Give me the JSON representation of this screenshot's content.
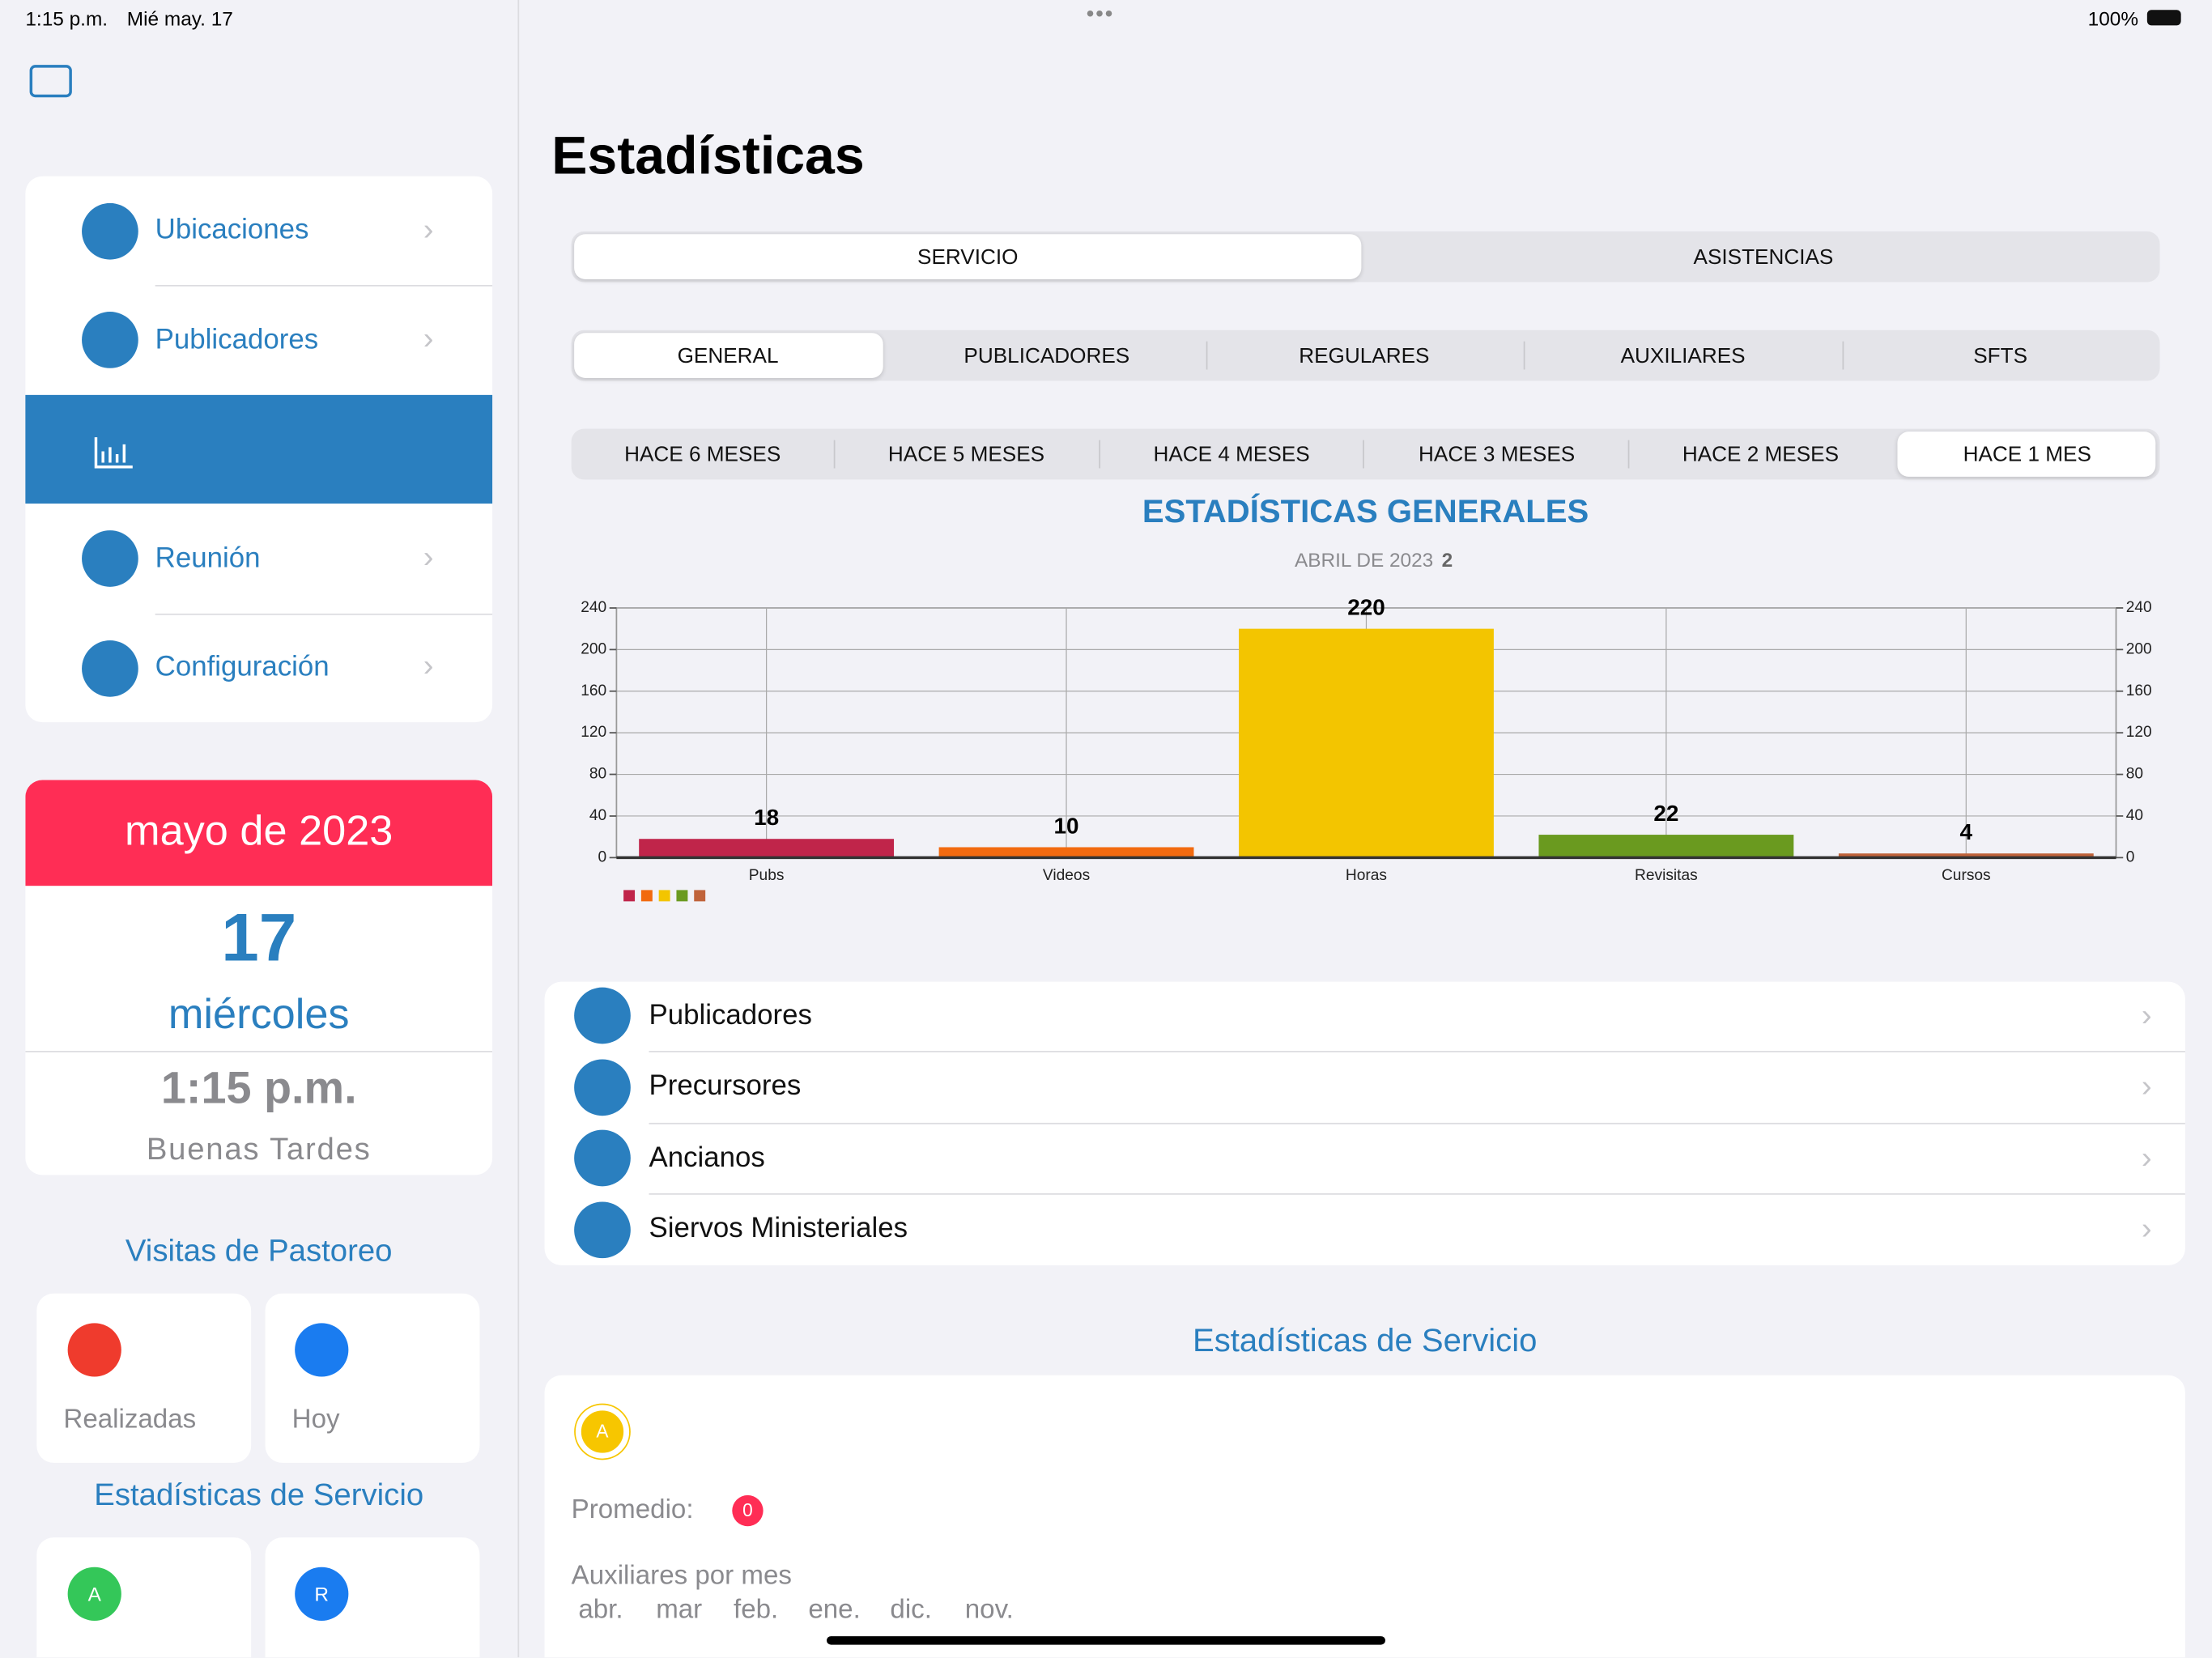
{
  "status_bar": {
    "time": "1:15 p.m.",
    "date": "Mié may. 17",
    "battery": "100%"
  },
  "sidebar": {
    "menu": [
      "Ubicaciones",
      "Publicadores",
      "Reunión",
      "Configuración"
    ],
    "calendar": {
      "month": "mayo de 2023",
      "day": "17",
      "weekday": "miércoles",
      "time": "1:15 p.m.",
      "greeting": "Buenas Tardes"
    },
    "visits": {
      "title": "Visitas de Pastoreo",
      "items": [
        "Realizadas",
        "Hoy"
      ]
    },
    "service": {
      "title": "Estadísticas de Servicio",
      "badges": [
        "A",
        "R"
      ]
    }
  },
  "main": {
    "title": "Estadísticas",
    "tabs": [
      "SERVICIO",
      "ASISTENCIAS"
    ],
    "subtabs": [
      "GENERAL",
      "PUBLICADORES",
      "REGULARES",
      "AUXILIARES",
      "SFTS"
    ],
    "periods": [
      "HACE 6 MESES",
      "HACE 5 MESES",
      "HACE 4 MESES",
      "HACE 3 MESES",
      "HACE 2 MESES",
      "HACE 1 MES"
    ],
    "list": [
      "Publicadores",
      "Precursores",
      "Ancianos",
      "Siervos Ministeriales"
    ],
    "service_section": {
      "title": "Estadísticas de Servicio",
      "badge": "A",
      "average_label": "Promedio:",
      "average": "0",
      "monthly_label": "Auxiliares por mes",
      "months": [
        "abr.",
        "mar",
        "feb.",
        "ene.",
        "dic.",
        "nov."
      ]
    }
  },
  "chart_data": {
    "type": "bar",
    "title": "ESTADÍSTICAS GENERALES",
    "subtitle": "ABRIL DE 2023",
    "subtitle_count": "2",
    "categories": [
      "Pubs",
      "Videos",
      "Horas",
      "Revisitas",
      "Cursos"
    ],
    "values": [
      18,
      10,
      220,
      22,
      4
    ],
    "colors": [
      "#c0254a",
      "#f26a0f",
      "#f3c500",
      "#6a9a1f",
      "#c0633a"
    ],
    "ylim": [
      0,
      240
    ],
    "yticks": [
      0,
      40,
      80,
      120,
      160,
      200,
      240
    ],
    "y2lim": [
      0,
      240
    ],
    "y2ticks": [
      0,
      40,
      80,
      120,
      160,
      200,
      240
    ],
    "grid": true
  }
}
